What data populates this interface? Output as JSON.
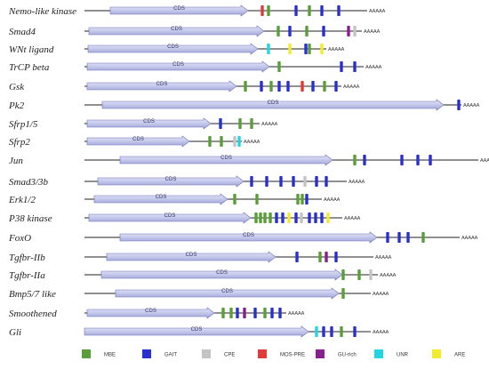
{
  "element_colors": {
    "MBE": "#5a9e3a",
    "GAIT": "#2a2fd0",
    "CPE": "#c4c4c4",
    "MOS-PRE": "#e03b3b",
    "GU-rich": "#8a1f8f",
    "UNR": "#22d6e0",
    "ARE": "#f2ea2c"
  },
  "legend": [
    {
      "key": "MBE",
      "label": "MBE"
    },
    {
      "key": "GAIT",
      "label": "GAIT"
    },
    {
      "key": "CPE",
      "label": "CPE"
    },
    {
      "key": "MOS-PRE",
      "label": "MOS-PRE"
    },
    {
      "key": "GU-rich",
      "label": "GU-rich"
    },
    {
      "key": "UNR",
      "label": "UNR"
    },
    {
      "key": "ARE",
      "label": "ARE"
    }
  ],
  "cds_label": "CDS",
  "polya_label": "AAAAA",
  "genes": [
    {
      "name": "Nemo-like kinase",
      "elements": [
        "MOS-PRE",
        "MBE",
        "GAIT",
        "MBE",
        "GAIT",
        "GAIT"
      ]
    },
    {
      "name": "Smad4",
      "elements": [
        "MBE",
        "GAIT",
        "MBE",
        "GAIT",
        "GU-rich",
        "CPE"
      ]
    },
    {
      "name": "WNt ligand",
      "elements": [
        "UNR",
        "ARE",
        "GAIT",
        "MBE",
        "ARE"
      ]
    },
    {
      "name": "TrCP beta",
      "elements": [
        "MBE",
        "GAIT",
        "GAIT"
      ]
    },
    {
      "name": "Gsk",
      "elements": [
        "MBE",
        "GAIT",
        "MBE",
        "GAIT",
        "GAIT",
        "MOS-PRE",
        "GAIT",
        "MBE",
        "GAIT"
      ]
    },
    {
      "name": "Pk2",
      "elements": [
        "GAIT"
      ]
    },
    {
      "name": "Sfrp1/5",
      "elements": [
        "GAIT",
        "MBE",
        "MBE"
      ]
    },
    {
      "name": "Sfrp2",
      "elements": [
        "MBE",
        "MBE",
        "CPE",
        "UNR"
      ]
    },
    {
      "name": "Jun",
      "elements": [
        "MBE",
        "GAIT",
        "GAIT",
        "GAIT",
        "GAIT"
      ]
    },
    {
      "name": "Smad3/3b",
      "elements": [
        "GAIT",
        "GAIT",
        "GAIT",
        "GAIT",
        "CPE",
        "GAIT",
        "GAIT"
      ]
    },
    {
      "name": "Erk1/2",
      "elements": [
        "MBE",
        "MBE",
        "MBE",
        "MBE",
        "GAIT"
      ]
    },
    {
      "name": "P38 kinase",
      "elements": [
        "MBE",
        "MBE",
        "MBE",
        "MBE",
        "GAIT",
        "GAIT",
        "ARE",
        "GAIT",
        "CPE",
        "GAIT",
        "GAIT",
        "GAIT",
        "ARE"
      ]
    },
    {
      "name": "FoxO",
      "elements": [
        "GAIT",
        "GAIT",
        "GAIT",
        "MBE"
      ]
    },
    {
      "name": "Tgfbr-IIb",
      "elements": [
        "GAIT",
        "MBE",
        "GU-rich",
        "GAIT"
      ]
    },
    {
      "name": "Tgfbr-IIa",
      "elements": [
        "MBE",
        "MBE",
        "CPE"
      ]
    },
    {
      "name": "Bmp5/7 like",
      "elements": [
        "MBE"
      ]
    },
    {
      "name": "Smoothened",
      "elements": [
        "MBE",
        "MBE",
        "GAIT",
        "GU-rich",
        "GAIT",
        "MBE",
        "GAIT",
        "GAIT",
        "GAIT"
      ]
    },
    {
      "name": "Gli",
      "elements": [
        "UNR",
        "GAIT",
        "GAIT",
        "MBE",
        "GAIT",
        "CPE"
      ]
    }
  ]
}
